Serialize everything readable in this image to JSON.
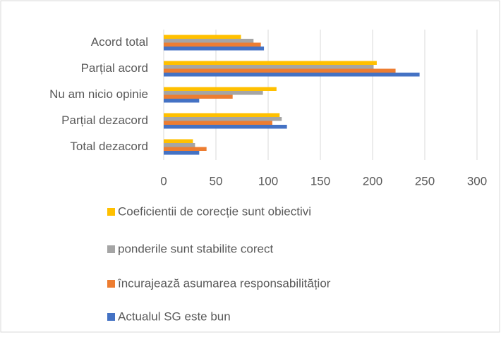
{
  "chart_data": {
    "type": "hbar",
    "categories": [
      "Acord total",
      "Parțial acord",
      "Nu am nicio opinie",
      "Parțial dezacord",
      "Total dezacord"
    ],
    "series": [
      {
        "name": "Coeficientii de corecție sunt obiectivi",
        "color": "#ffc000",
        "values": [
          74,
          204,
          108,
          111,
          28
        ]
      },
      {
        "name": "ponderile sunt stabilite corect",
        "color": "#a5a5a5",
        "values": [
          86,
          201,
          95,
          113,
          30
        ]
      },
      {
        "name": "încurajează asumarea responsabilitățior",
        "color": "#ed7d31",
        "values": [
          93,
          222,
          66,
          104,
          41
        ]
      },
      {
        "name": "Actualul SG este bun",
        "color": "#4472c4",
        "values": [
          96,
          245,
          34,
          118,
          34
        ]
      }
    ],
    "xlim": [
      0,
      300
    ],
    "xticks": [
      0,
      50,
      100,
      150,
      200,
      250,
      300
    ],
    "grid": true,
    "legend": "bottom"
  }
}
